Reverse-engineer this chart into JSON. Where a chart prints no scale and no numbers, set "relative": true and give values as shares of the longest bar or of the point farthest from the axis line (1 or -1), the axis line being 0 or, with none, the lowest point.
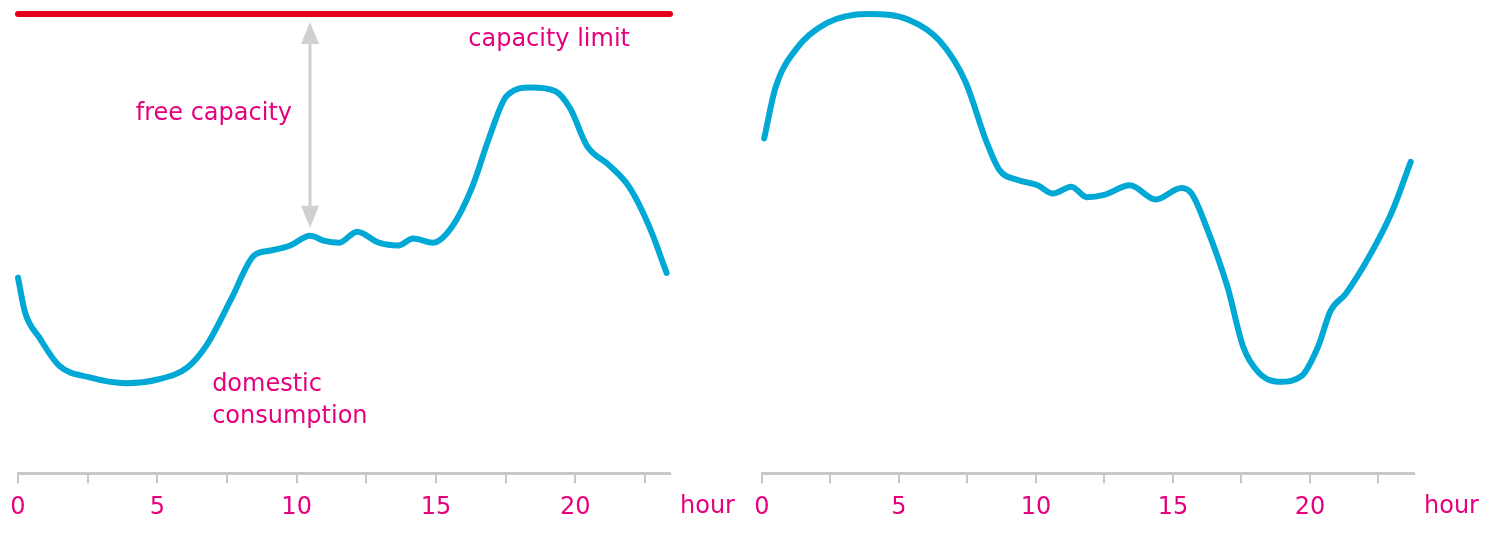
{
  "chart_data": [
    {
      "type": "line",
      "relative": true,
      "xlabel": "hour",
      "xlim": [
        0,
        23.4
      ],
      "xticks": [
        0,
        {
          "value": 2.5,
          "label": null
        },
        5,
        {
          "value": 7.5,
          "label": null
        },
        10,
        {
          "value": 12.5,
          "label": null
        },
        15,
        {
          "value": 17.5,
          "label": null
        },
        20,
        {
          "value": 22.5,
          "label": null
        }
      ],
      "grid": false,
      "legend": false,
      "marker": "none",
      "annotations": [
        "free capacity"
      ],
      "series": [
        {
          "name": "domestic consumption",
          "color": "#00a8d6",
          "x": [
            0,
            0.25,
            0.78,
            1.48,
            2.54,
            3.88,
            5.01,
            6.07,
            6.77,
            7.65,
            8.47,
            9.07,
            9.77,
            10.48,
            11.0,
            11.53,
            12.17,
            12.95,
            13.65,
            14.18,
            14.89,
            15.59,
            16.3,
            16.9,
            17.53,
            18.41,
            19.29,
            19.82,
            20.42,
            21.23,
            21.94,
            22.65,
            23.28
          ],
          "values": [
            0.426,
            0.351,
            0.294,
            0.234,
            0.209,
            0.196,
            0.204,
            0.23,
            0.279,
            0.379,
            0.474,
            0.485,
            0.496,
            0.517,
            0.506,
            0.502,
            0.526,
            0.502,
            0.496,
            0.511,
            0.502,
            0.538,
            0.623,
            0.729,
            0.821,
            0.84,
            0.832,
            0.794,
            0.713,
            0.67,
            0.623,
            0.538,
            0.436
          ]
        },
        {
          "name": "capacity limit",
          "color": "#e2001a",
          "x": [
            0,
            23.4
          ],
          "values": [
            1,
            1
          ]
        }
      ]
    },
    {
      "type": "line",
      "relative": true,
      "xlabel": "hour",
      "xlim": [
        0,
        23.8
      ],
      "xticks": [
        0,
        {
          "value": 2.5,
          "label": null
        },
        5,
        {
          "value": 7.5,
          "label": null
        },
        10,
        {
          "value": 12.5,
          "label": null
        },
        15,
        {
          "value": 17.5,
          "label": null
        },
        20,
        {
          "value": 22.5,
          "label": null
        }
      ],
      "grid": false,
      "legend": false,
      "marker": "none",
      "series": [
        {
          "color": "#00a8d6",
          "x": [
            0.08,
            0.49,
            1.24,
            2.36,
            3.86,
            5.37,
            6.49,
            7.43,
            8.18,
            8.67,
            9.31,
            10.06,
            10.62,
            11.29,
            11.86,
            12.49,
            13.43,
            14.37,
            15.31,
            15.68,
            16.25,
            17.0,
            17.56,
            18.12,
            18.87,
            19.7,
            20.3,
            20.75,
            21.31,
            22.25,
            23.0,
            23.68
          ],
          "values": [
            0.729,
            0.839,
            0.923,
            0.98,
            1,
            0.987,
            0.941,
            0.852,
            0.724,
            0.66,
            0.639,
            0.627,
            0.609,
            0.624,
            0.601,
            0.606,
            0.627,
            0.596,
            0.621,
            0.609,
            0.532,
            0.404,
            0.276,
            0.22,
            0.199,
            0.212,
            0.276,
            0.353,
            0.391,
            0.481,
            0.57,
            0.678
          ]
        }
      ]
    }
  ]
}
